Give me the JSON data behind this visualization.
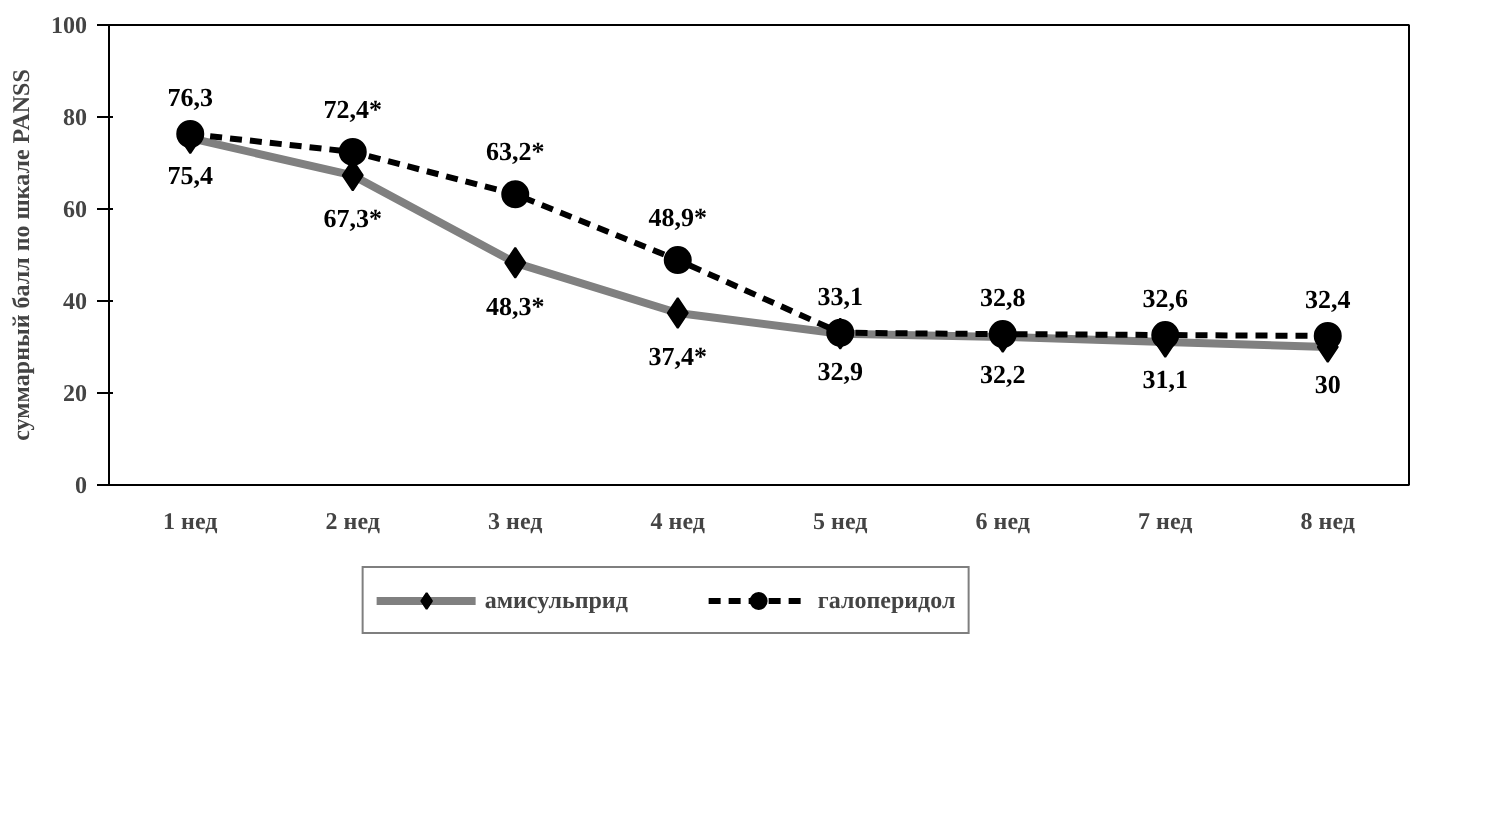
{
  "chart_data": {
    "type": "line",
    "ylabel": "суммарный балл по шкале PANSS",
    "categories": [
      "1 нед",
      "2 нед",
      "3 нед",
      "4 нед",
      "5 нед",
      "6 нед",
      "7 нед",
      "8 нед"
    ],
    "ylim": [
      0,
      100
    ],
    "yticks": [
      0,
      20,
      40,
      60,
      80,
      100
    ],
    "grid": false,
    "legend": "bottom",
    "series": [
      {
        "name": "амисульприд",
        "color": "#808080",
        "marker": "diamond",
        "line_style": "solid",
        "values": [
          75.4,
          67.3,
          48.3,
          37.4,
          32.9,
          32.2,
          31.1,
          30
        ],
        "value_labels": [
          "75,4",
          "67,3*",
          "48,3*",
          "37,4*",
          "32,9",
          "32,2",
          "31,1",
          "30"
        ]
      },
      {
        "name": "галоперидол",
        "color": "#000000",
        "marker": "circle",
        "line_style": "dashed",
        "values": [
          76.3,
          72.4,
          63.2,
          48.9,
          33.1,
          32.8,
          32.6,
          32.4
        ],
        "value_labels": [
          "76,3",
          "72,4*",
          "63,2*",
          "48,9*",
          "33,1",
          "32,8",
          "32,6",
          "32,4"
        ]
      }
    ]
  }
}
